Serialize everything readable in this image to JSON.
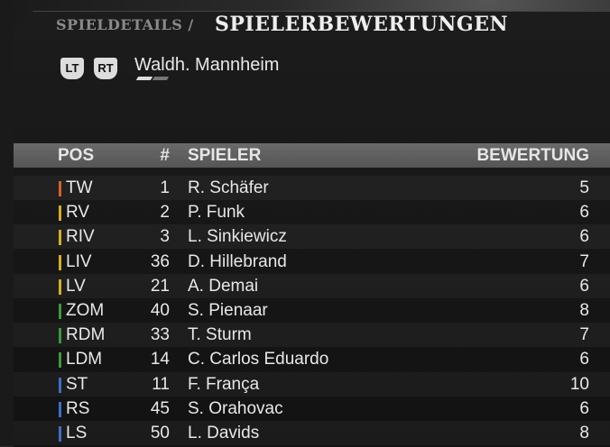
{
  "breadcrumb": {
    "parent": "SPIELDETAILS /",
    "current": "SPIELERBEWERTUNGEN"
  },
  "buttons": {
    "lt": "LT",
    "rt": "RT"
  },
  "team": "Waldh. Mannheim",
  "columns": {
    "pos": "POS",
    "num": "#",
    "player": "SPIELER",
    "rating": "BEWERTUNG"
  },
  "colors": {
    "goalkeeper": "#d8602a",
    "defender": "#d4b020",
    "midfielder": "#3a9a3a",
    "forward": "#3a70c8"
  },
  "players": [
    {
      "pos": "TW",
      "num": "1",
      "name": "R. Schäfer",
      "rating": "5",
      "group": "goalkeeper"
    },
    {
      "pos": "RV",
      "num": "2",
      "name": "P. Funk",
      "rating": "6",
      "group": "defender"
    },
    {
      "pos": "RIV",
      "num": "3",
      "name": "L. Sinkiewicz",
      "rating": "6",
      "group": "defender"
    },
    {
      "pos": "LIV",
      "num": "36",
      "name": "D. Hillebrand",
      "rating": "7",
      "group": "defender"
    },
    {
      "pos": "LV",
      "num": "21",
      "name": "A. Demai",
      "rating": "6",
      "group": "defender"
    },
    {
      "pos": "ZOM",
      "num": "40",
      "name": "S. Pienaar",
      "rating": "8",
      "group": "midfielder"
    },
    {
      "pos": "RDM",
      "num": "33",
      "name": "T. Sturm",
      "rating": "7",
      "group": "midfielder"
    },
    {
      "pos": "LDM",
      "num": "14",
      "name": "C. Carlos Eduardo",
      "rating": "6",
      "group": "midfielder"
    },
    {
      "pos": "ST",
      "num": "11",
      "name": "F. França",
      "rating": "10",
      "group": "forward"
    },
    {
      "pos": "RS",
      "num": "45",
      "name": "S. Orahovac",
      "rating": "6",
      "group": "forward"
    },
    {
      "pos": "LS",
      "num": "50",
      "name": "L. Davids",
      "rating": "8",
      "group": "forward"
    }
  ]
}
